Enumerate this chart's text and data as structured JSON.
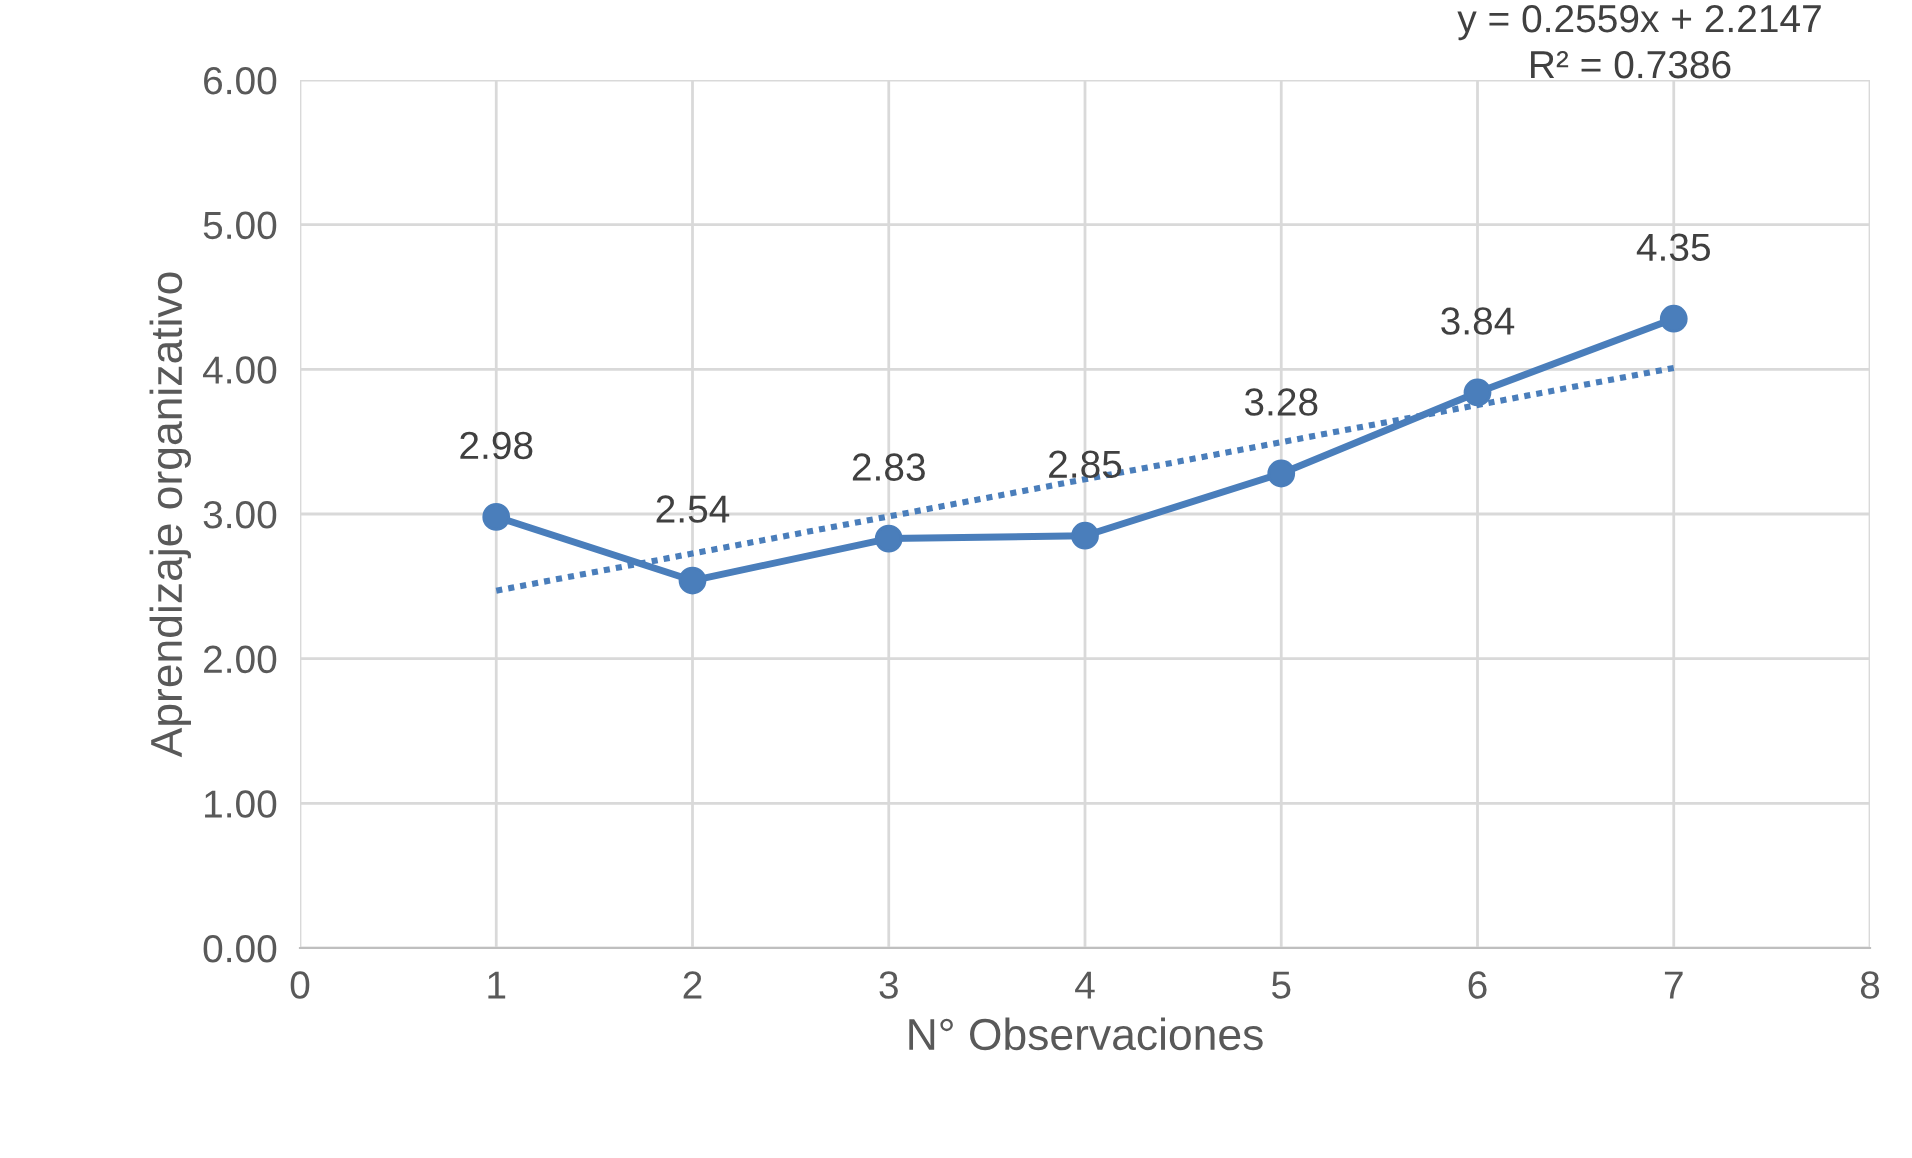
{
  "chart_data": {
    "type": "line",
    "xlabel": "N° Observaciones",
    "ylabel": "Aprendizaje organizativo",
    "x": [
      1,
      2,
      3,
      4,
      5,
      6,
      7
    ],
    "series": [
      {
        "color": "#4a7ebb",
        "values": [
          2.98,
          2.54,
          2.83,
          2.85,
          3.28,
          3.84,
          4.35
        ],
        "value_labels": [
          "2.98",
          "2.54",
          "2.83",
          "2.85",
          "3.28",
          "3.84",
          "4.35"
        ],
        "marker": "circle",
        "line_style": "solid"
      },
      {
        "type": "line",
        "color": "#4a7ebb",
        "x": [
          1,
          7
        ],
        "values": [
          2.47,
          4.01
        ],
        "marker": "none",
        "line_style": "dotted"
      }
    ],
    "annotations": [
      "y = 0.2559x + 2.2147",
      "R² = 0.7386"
    ],
    "xlim": [
      0,
      8
    ],
    "xticks": [
      0,
      1,
      2,
      3,
      4,
      5,
      6,
      7,
      8
    ],
    "ylim": [
      0,
      6
    ],
    "yticks": [
      {
        "value": 0,
        "label": "0.00"
      },
      {
        "value": 1,
        "label": "1.00"
      },
      {
        "value": 2,
        "label": "2.00"
      },
      {
        "value": 3,
        "label": "3.00"
      },
      {
        "value": 4,
        "label": "4.00"
      },
      {
        "value": 5,
        "label": "5.00"
      },
      {
        "value": 6,
        "label": "6.00"
      }
    ],
    "grid": true,
    "legend": false
  }
}
